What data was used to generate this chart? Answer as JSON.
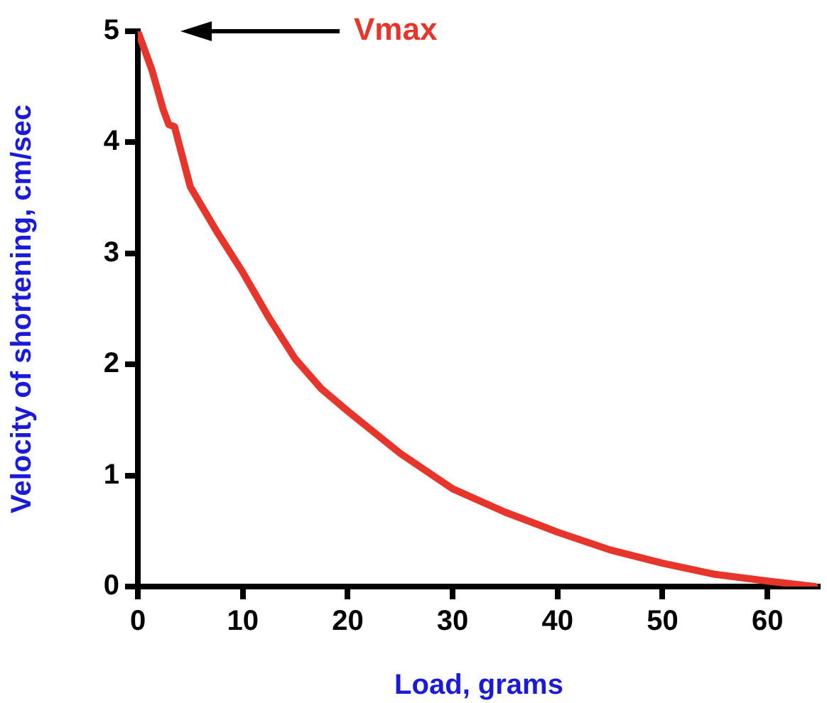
{
  "chart_data": {
    "type": "line",
    "xlabel": "Load, grams",
    "ylabel": "Velocity of shortening, cm/sec",
    "x": [
      0,
      1.35,
      2.4,
      2.95,
      3.5,
      5,
      7.5,
      10,
      12.5,
      15,
      17.5,
      20,
      25,
      30,
      35,
      40,
      45,
      50,
      55,
      60,
      64.5
    ],
    "series": [
      {
        "color": "#e8352b",
        "values": [
          5,
          4.65,
          4.3,
          4.16,
          4.14,
          3.6,
          3.2,
          2.83,
          2.42,
          2.05,
          1.78,
          1.58,
          1.2,
          0.88,
          0.67,
          0.49,
          0.33,
          0.21,
          0.11,
          0.05,
          0
        ]
      }
    ],
    "xlim": [
      0,
      65
    ],
    "ylim": [
      0,
      5
    ],
    "xticks": [
      0,
      10,
      20,
      30,
      40,
      50,
      60
    ],
    "yticks": [
      0,
      1,
      2,
      3,
      4,
      5
    ],
    "annotations": [
      "Vmax"
    ],
    "grid": false,
    "legend": false,
    "marker": "none",
    "line_style": "solid"
  }
}
